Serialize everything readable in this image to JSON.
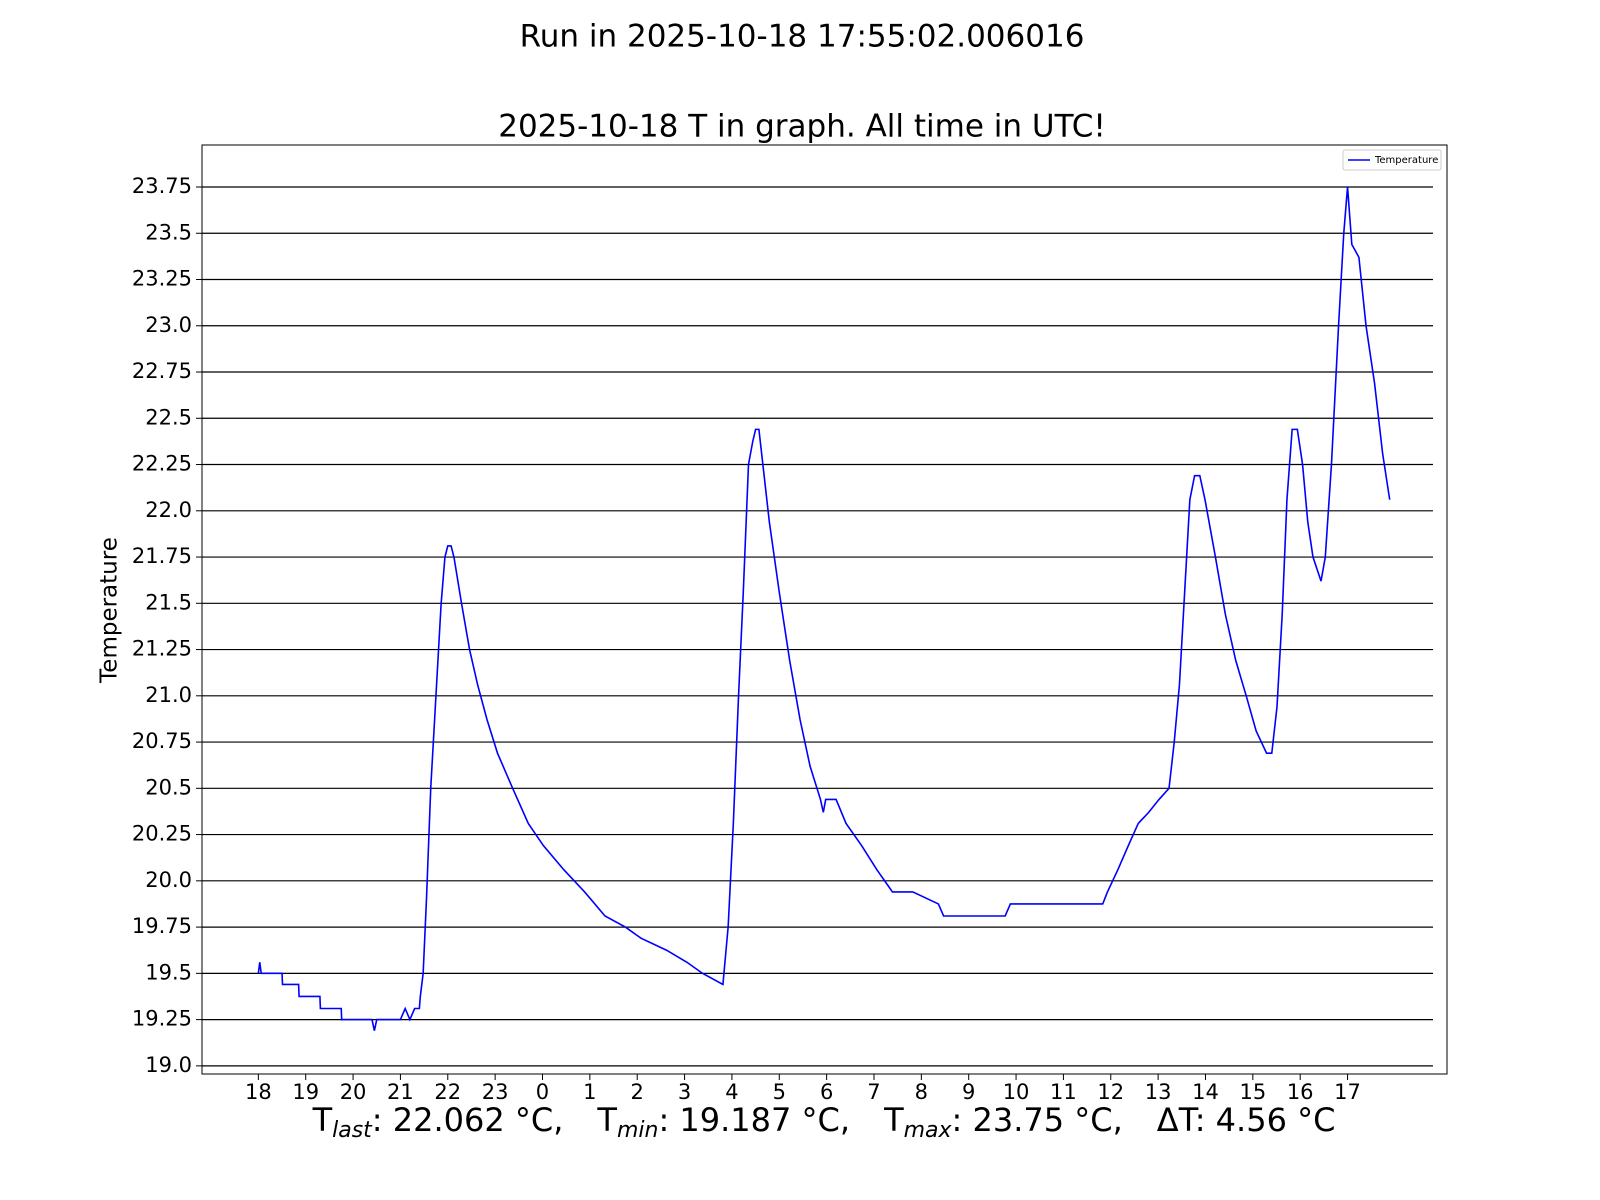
{
  "chart_data": {
    "type": "line",
    "title": "Run in 2025-10-18 17:55:02.006016",
    "subtitle": "2025-10-18 T in graph. All time in UTC!",
    "y_label": "Temperature",
    "x": [
      0,
      0.03,
      0.06,
      0.5,
      0.51,
      0.85,
      0.86,
      1.3,
      1.31,
      1.75,
      1.76,
      2.4,
      2.45,
      2.5,
      3.0,
      3.1,
      3.2,
      3.3,
      3.4,
      3.42,
      3.48,
      3.55,
      3.64,
      3.75,
      3.86,
      3.94,
      4.0,
      4.07,
      4.13,
      4.29,
      4.46,
      4.63,
      4.83,
      5.05,
      5.37,
      5.7,
      6.02,
      6.45,
      6.89,
      7.32,
      7.75,
      8.08,
      8.62,
      9.05,
      9.38,
      9.81,
      9.92,
      10.03,
      10.14,
      10.24,
      10.35,
      10.44,
      10.5,
      10.57,
      10.68,
      10.79,
      11.0,
      11.22,
      11.44,
      11.65,
      11.87,
      11.93,
      11.98,
      12.2,
      12.41,
      12.74,
      13.06,
      13.39,
      13.82,
      14.36,
      14.47,
      15.77,
      15.88,
      16.85,
      17.83,
      17.93,
      18.15,
      18.37,
      18.58,
      18.8,
      19.02,
      19.23,
      19.34,
      19.45,
      19.56,
      19.67,
      19.77,
      19.88,
      19.99,
      20.21,
      20.42,
      20.64,
      20.86,
      21.07,
      21.29,
      21.4,
      21.51,
      21.62,
      21.72,
      21.83,
      21.94,
      22.05,
      22.16,
      22.27,
      22.44,
      22.53,
      22.66,
      22.81,
      22.92,
      23.0,
      23.09,
      23.24,
      23.39,
      23.57,
      23.74,
      23.89
    ],
    "series": [
      {
        "name": "Temperature",
        "color": "#0000ff",
        "values": [
          19.5,
          19.56,
          19.5,
          19.5,
          19.44,
          19.44,
          19.375,
          19.375,
          19.31,
          19.31,
          19.25,
          19.25,
          19.19,
          19.25,
          19.25,
          19.31,
          19.25,
          19.31,
          19.31,
          19.375,
          19.5,
          19.9,
          20.5,
          21.0,
          21.5,
          21.75,
          21.81,
          21.81,
          21.75,
          21.5,
          21.25,
          21.06,
          20.87,
          20.69,
          20.5,
          20.31,
          20.19,
          20.06,
          19.94,
          19.81,
          19.75,
          19.69,
          19.625,
          19.56,
          19.5,
          19.44,
          19.75,
          20.31,
          21.0,
          21.56,
          22.25,
          22.375,
          22.44,
          22.44,
          22.19,
          21.94,
          21.56,
          21.19,
          20.87,
          20.62,
          20.44,
          20.37,
          20.44,
          20.44,
          20.31,
          20.19,
          20.06,
          19.94,
          19.94,
          19.875,
          19.81,
          19.81,
          19.875,
          19.875,
          19.875,
          19.94,
          20.06,
          20.19,
          20.31,
          20.37,
          20.44,
          20.5,
          20.75,
          21.06,
          21.56,
          22.06,
          22.19,
          22.19,
          22.06,
          21.75,
          21.44,
          21.19,
          21.0,
          20.81,
          20.69,
          20.69,
          20.94,
          21.44,
          22.06,
          22.44,
          22.44,
          22.25,
          21.94,
          21.75,
          21.62,
          21.75,
          22.25,
          23.0,
          23.5,
          23.75,
          23.44,
          23.37,
          23.0,
          22.69,
          22.31,
          22.06
        ]
      }
    ],
    "xlim": [
      -1.19,
      25.1
    ],
    "xticks": [
      {
        "value": 0,
        "label": "18"
      },
      {
        "value": 1,
        "label": "19"
      },
      {
        "value": 2,
        "label": "20"
      },
      {
        "value": 3,
        "label": "21"
      },
      {
        "value": 4,
        "label": "22"
      },
      {
        "value": 5,
        "label": "23"
      },
      {
        "value": 6,
        "label": "0"
      },
      {
        "value": 7,
        "label": "1"
      },
      {
        "value": 8,
        "label": "2"
      },
      {
        "value": 9,
        "label": "3"
      },
      {
        "value": 10,
        "label": "4"
      },
      {
        "value": 11,
        "label": "5"
      },
      {
        "value": 12,
        "label": "6"
      },
      {
        "value": 13,
        "label": "7"
      },
      {
        "value": 14,
        "label": "8"
      },
      {
        "value": 15,
        "label": "9"
      },
      {
        "value": 16,
        "label": "10"
      },
      {
        "value": 17,
        "label": "11"
      },
      {
        "value": 18,
        "label": "12"
      },
      {
        "value": 19,
        "label": "13"
      },
      {
        "value": 20,
        "label": "14"
      },
      {
        "value": 21,
        "label": "15"
      },
      {
        "value": 22,
        "label": "16"
      },
      {
        "value": 23,
        "label": "17"
      }
    ],
    "ylim": [
      18.956,
      23.977
    ],
    "yticks": [
      {
        "value": 19.0,
        "label": "19.0"
      },
      19.25,
      19.5,
      19.75,
      {
        "value": 20.0,
        "label": "20.0"
      },
      20.25,
      20.5,
      20.75,
      {
        "value": 21.0,
        "label": "21.0"
      },
      21.25,
      21.5,
      21.75,
      {
        "value": 22.0,
        "label": "22.0"
      },
      22.25,
      22.5,
      22.75,
      {
        "value": 23.0,
        "label": "23.0"
      },
      23.25,
      23.5,
      23.75
    ],
    "grid": true,
    "legend": "upper right",
    "stats": [
      {
        "symbol": "T",
        "subscript": "last",
        "text": ": 22.062 °C,"
      },
      {
        "symbol": "T",
        "subscript": "min",
        "text": ": 19.187 °C,"
      },
      {
        "symbol": "T",
        "subscript": "max",
        "text": ": 23.75 °C,"
      },
      {
        "symbol": "ΔT",
        "subscript": null,
        "text": ": 4.56 °C"
      }
    ]
  }
}
